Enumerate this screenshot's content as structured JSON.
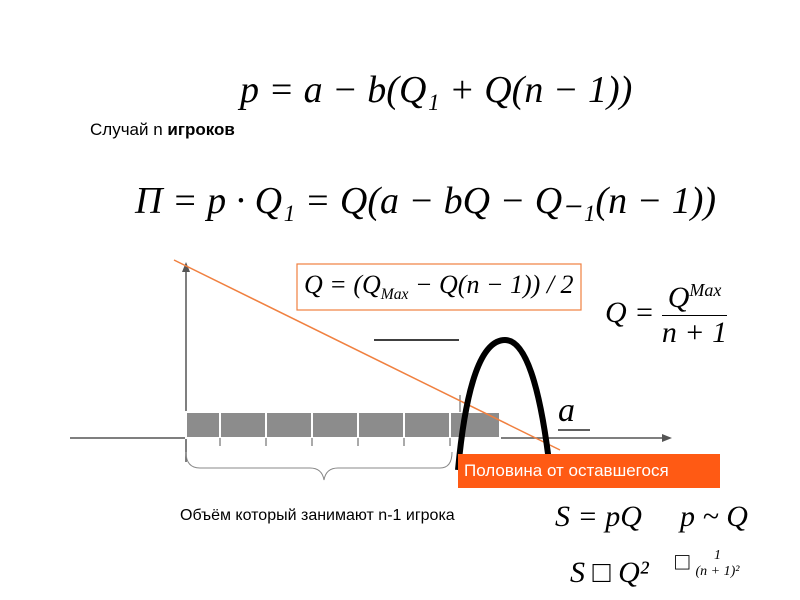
{
  "slide": {
    "formula_price": "p = a − b(Q₁ + Q(n − 1))",
    "case_label": {
      "plain": "Случай n",
      "bold": "игроков"
    },
    "formula_profit": "Π  = p · Q₁ = Q(a − bQ − Q₋₁(n − 1))",
    "formula_box": [
      "Q = (Q",
      "Max",
      " − Q(n − 1)) / 2"
    ],
    "formula_equilibrium": {
      "left": "Q =",
      "numerator": [
        "Q",
        "Max"
      ],
      "denominator": "n + 1"
    },
    "axis_symbol": "a",
    "half_label": "Половина от оставшегося",
    "volume_label": "Объём который занимают n-1 игрока",
    "formula_revenue": "S = pQ",
    "formula_price_prop": "p ~ Q",
    "formula_square": "S □ Q²",
    "formula_last": {
      "symbol": "□",
      "numerator": "1",
      "denominator": "(n + 1)²"
    }
  }
}
